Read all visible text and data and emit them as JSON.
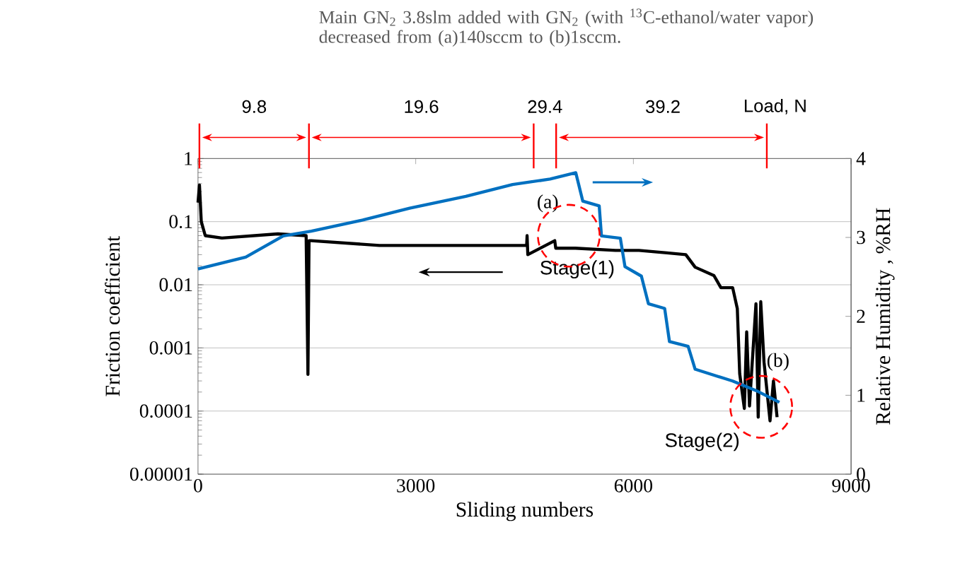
{
  "chart_data": {
    "type": "line",
    "title": "Main GN$_{2}$ 3.8slm added with GN$_{2}$ (with $^{13}$C-ethanol/water vapor) decreased from (a)140sccm to (b)1sccm.",
    "xlabel": "Sliding numbers",
    "ylabel": "Friction coefficient",
    "y2label": "Relative Humidity , %RH",
    "log": "y",
    "grid": "y",
    "xlim": [
      0,
      9000
    ],
    "xticks": [
      0,
      3000,
      6000,
      9000
    ],
    "ylim": [
      1e-05,
      1
    ],
    "yticks": [
      {
        "value": 1e-05,
        "label": "0.00001"
      },
      {
        "value": 0.0001,
        "label": "0.0001"
      },
      {
        "value": 0.001,
        "label": "0.001"
      },
      {
        "value": 0.01,
        "label": "0.01"
      },
      {
        "value": 0.1,
        "label": "0.1"
      },
      {
        "value": 1,
        "label": "1"
      }
    ],
    "y2lim": [
      0,
      4
    ],
    "y2ticks": [
      0,
      1,
      2,
      3,
      4
    ],
    "series": [
      {
        "color": "#000000",
        "x": [
          0,
          20,
          45,
          100,
          330,
          1100,
          1490,
          1515,
          1530,
          1562,
          2500,
          4529,
          4535,
          4545,
          4916,
          4930,
          5200,
          5754,
          6077,
          6464,
          6722,
          6851,
          7110,
          7206,
          7368,
          7432,
          7465,
          7529,
          7561,
          7600,
          7689,
          7720,
          7755,
          7800,
          7883,
          7930,
          7980
        ],
        "values": [
          0.2,
          0.38,
          0.1,
          0.06,
          0.055,
          0.064,
          0.06,
          0.00038,
          0.05,
          0.05,
          0.042,
          0.042,
          0.06,
          0.03,
          0.05,
          0.038,
          0.038,
          0.035,
          0.035,
          0.032,
          0.03,
          0.019,
          0.014,
          0.009,
          0.009,
          0.0042,
          0.00039,
          0.00011,
          0.0018,
          0.00012,
          0.005,
          8e-05,
          0.0054,
          0.0006,
          7e-05,
          0.0003,
          8e-05
        ]
      },
      {
        "color": "#0070c0",
        "axis": "y2",
        "x": [
          0,
          658,
          1175,
          1562,
          2270,
          2917,
          3691,
          4335,
          4852,
          5206,
          5303,
          5529,
          5560,
          5820,
          5884,
          6110,
          6207,
          6431,
          6497,
          6754,
          6851,
          7368,
          7689,
          8012
        ],
        "values": [
          2.6,
          2.75,
          3.02,
          3.08,
          3.22,
          3.37,
          3.52,
          3.67,
          3.74,
          3.82,
          3.46,
          3.4,
          3.02,
          2.99,
          2.63,
          2.51,
          2.16,
          2.1,
          1.68,
          1.62,
          1.33,
          1.18,
          1.06,
          0.91
        ]
      }
    ],
    "annotations": [
      "9.8",
      "19.6",
      "29.4",
      "39.2",
      "Load, N",
      "(a)",
      "Stage(1)",
      "(b)",
      "Stage(2)"
    ]
  }
}
